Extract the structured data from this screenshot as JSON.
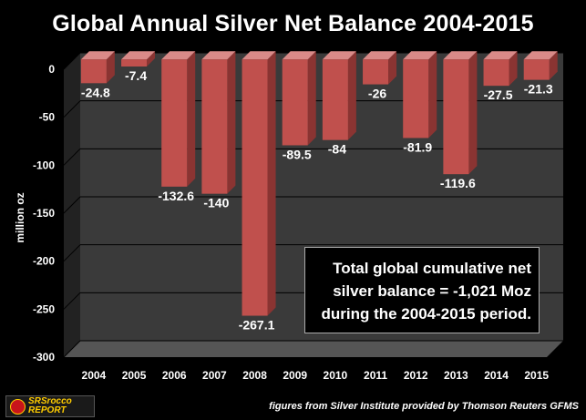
{
  "title": "Global Annual Silver Net Balance 2004-2015",
  "annotation_lines": [
    "Total global cumulative net",
    "silver balance = -1,021 Moz",
    "during the 2004-2015 period."
  ],
  "source": "figures from Silver Institute provided by Thomson Reuters GFMS",
  "logo": {
    "line1": "SRSrocco",
    "line2": "REPORT"
  },
  "colors": {
    "background": "#000000",
    "plot_area": "#3a3a3a",
    "bar": "#c0504d",
    "bar_side": "#8a3432",
    "text": "#ffffff"
  },
  "chart_data": {
    "type": "bar",
    "title": "Global Annual Silver Net Balance 2004-2015",
    "xlabel": "",
    "ylabel": "million oz",
    "categories": [
      "2004",
      "2005",
      "2006",
      "2007",
      "2008",
      "2009",
      "2010",
      "2011",
      "2012",
      "2013",
      "2014",
      "2015"
    ],
    "values": [
      -24.8,
      -7.4,
      -132.6,
      -140,
      -267.1,
      -89.5,
      -84,
      -26,
      -81.9,
      -119.6,
      -27.5,
      -21.3
    ],
    "data_labels": [
      "-24.8",
      "-7.4",
      "-132.6",
      "-140",
      "-267.1",
      "-89.5",
      "-84",
      "-26",
      "-81.9",
      "-119.6",
      "-27.5",
      "-21.3"
    ],
    "yticks": [
      0,
      -50,
      -100,
      -150,
      -200,
      -250,
      -300
    ],
    "ytick_labels": [
      "0",
      "-50",
      "-100",
      "-150",
      "-200",
      "-250",
      "-300"
    ],
    "ylim": [
      -300,
      0
    ],
    "grid": true,
    "legend": "none",
    "three_d": true
  }
}
